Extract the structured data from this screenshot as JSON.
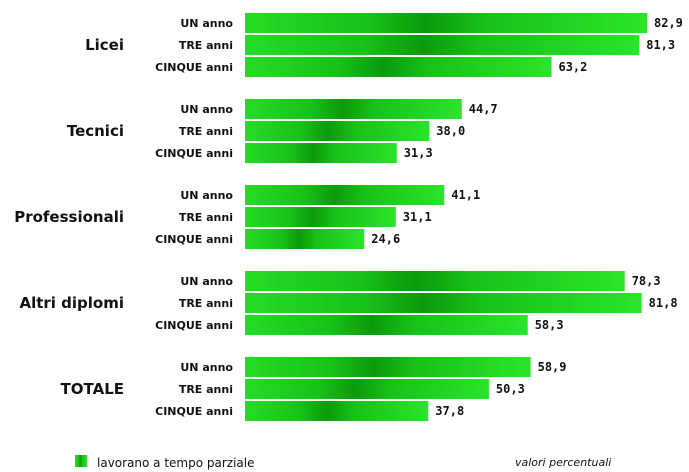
{
  "chart_data": {
    "type": "bar",
    "orientation": "horizontal",
    "series": [
      {
        "name": "lavorano a tempo parziale",
        "color": "#1fd21f"
      }
    ],
    "row_labels": [
      "UN anno",
      "TRE anni",
      "CINQUE anni"
    ],
    "groups": [
      {
        "label": "Licei",
        "values": [
          82.9,
          81.3,
          63.2
        ],
        "value_labels": [
          "82,9",
          "81,3",
          "63,2"
        ]
      },
      {
        "label": "Tecnici",
        "values": [
          44.7,
          38.0,
          31.3
        ],
        "value_labels": [
          "44,7",
          "38,0",
          "31,3"
        ]
      },
      {
        "label": "Professionali",
        "values": [
          41.1,
          31.1,
          24.6
        ],
        "value_labels": [
          "41,1",
          "31,1",
          "24,6"
        ]
      },
      {
        "label": "Altri diplomi",
        "values": [
          78.3,
          81.8,
          58.3
        ],
        "value_labels": [
          "78,3",
          "81,8",
          "58,3"
        ]
      },
      {
        "label": "TOTALE",
        "values": [
          58.9,
          50.3,
          37.8
        ],
        "value_labels": [
          "58,9",
          "50,3",
          "37,8"
        ]
      }
    ],
    "xlim": [
      0,
      100
    ],
    "grid": false,
    "legend_position": "bottom-left",
    "note": "valori percentuali"
  }
}
